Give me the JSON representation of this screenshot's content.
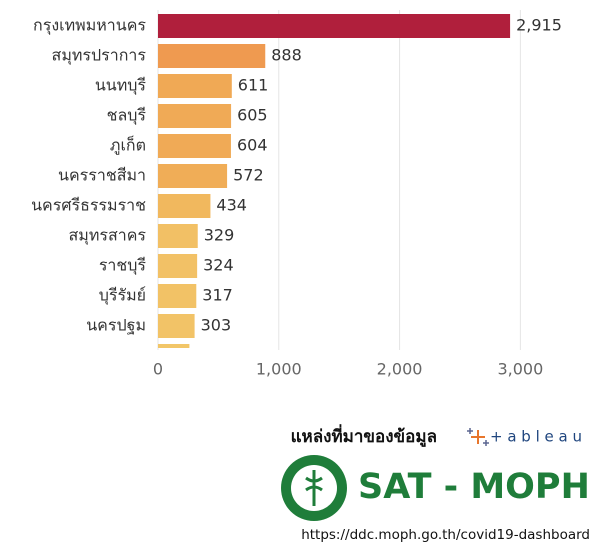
{
  "chart_data": {
    "type": "hbar",
    "categories": [
      "กรุงเทพมหานคร",
      "สมุทรปราการ",
      "นนทบุรี",
      "ชลบุรี",
      "ภูเก็ต",
      "นครราชสีมา",
      "นครศรีธรรมราช",
      "สมุทรสาคร",
      "ราชบุรี",
      "บุรีรัมย์",
      "นครปฐม",
      null
    ],
    "values": [
      2915,
      888,
      611,
      605,
      604,
      572,
      434,
      329,
      324,
      317,
      303,
      260
    ],
    "value_labels": [
      "2,915",
      "888",
      "611",
      "605",
      "604",
      "572",
      "434",
      "329",
      "324",
      "317",
      "303",
      null
    ],
    "colors": [
      "#b01f3c",
      "#ef9a50",
      "#f0a955",
      "#f0aa56",
      "#f0aa56",
      "#f0ad57",
      "#f1b85e",
      "#f2c065",
      "#f2c166",
      "#f2c266",
      "#f2c367",
      "#f2c668"
    ],
    "xlim": [
      0,
      3560
    ],
    "xticks": [
      0,
      {
        "value": 1000,
        "label": "1,000"
      },
      {
        "value": 2000,
        "label": "2,000"
      },
      {
        "value": 3000,
        "label": "3,000"
      }
    ],
    "grid": true
  },
  "footer": {
    "source_label": "แหล่งที่มาของข้อมูล",
    "tableau": "+ a b l e a u",
    "org": "SAT - MOPH",
    "url": "https://ddc.moph.go.th/covid19-dashboard"
  }
}
